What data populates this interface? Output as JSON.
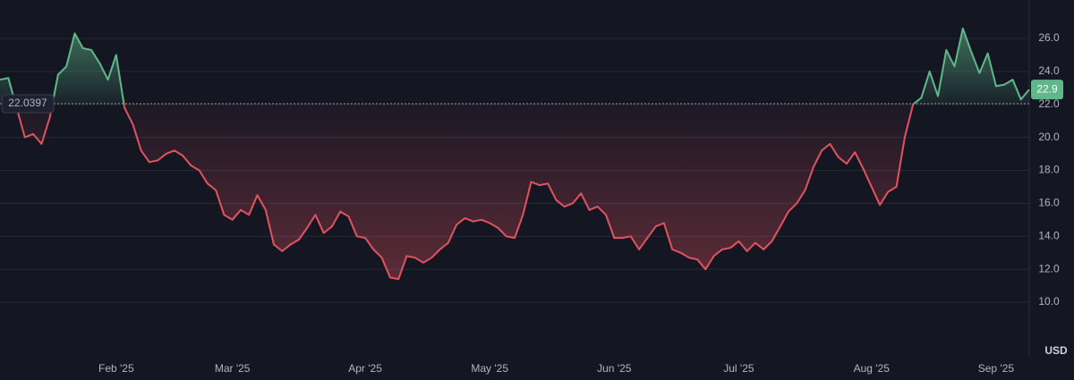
{
  "chart_data": {
    "type": "baseline",
    "categories": [
      null,
      null,
      null,
      null,
      null,
      null,
      null,
      null,
      null,
      null,
      null,
      null,
      null,
      null,
      "Feb '25",
      null,
      null,
      null,
      null,
      null,
      null,
      null,
      null,
      null,
      null,
      null,
      null,
      null,
      "Mar '25",
      null,
      null,
      null,
      null,
      null,
      null,
      null,
      null,
      null,
      null,
      null,
      null,
      null,
      null,
      null,
      "Apr '25",
      null,
      null,
      null,
      null,
      null,
      null,
      null,
      null,
      null,
      null,
      null,
      null,
      null,
      null,
      "May '25",
      null,
      null,
      null,
      null,
      null,
      null,
      null,
      null,
      null,
      null,
      null,
      null,
      null,
      null,
      "Jun '25",
      null,
      null,
      null,
      null,
      null,
      null,
      null,
      null,
      null,
      null,
      null,
      null,
      null,
      null,
      "Jul '25",
      null,
      null,
      null,
      null,
      null,
      null,
      null,
      null,
      null,
      null,
      null,
      null,
      null,
      null,
      null,
      "Aug '25",
      null,
      null,
      null,
      null,
      null,
      null,
      null,
      null,
      null,
      null,
      null,
      null,
      null,
      null,
      "Sep '25",
      null,
      null,
      null,
      null
    ],
    "values": [
      23.5,
      23.6,
      21.8,
      20.0,
      20.2,
      19.6,
      21.2,
      23.8,
      24.3,
      26.3,
      25.4,
      25.3,
      24.5,
      23.5,
      25.0,
      21.8,
      20.8,
      19.2,
      18.5,
      18.6,
      19.0,
      19.2,
      18.9,
      18.3,
      18.0,
      17.2,
      16.8,
      15.3,
      15.0,
      15.6,
      15.3,
      16.5,
      15.6,
      13.5,
      13.1,
      13.5,
      13.8,
      14.5,
      15.3,
      14.2,
      14.6,
      15.5,
      15.2,
      14.0,
      13.9,
      13.2,
      12.7,
      11.5,
      11.4,
      12.8,
      12.7,
      12.4,
      12.7,
      13.2,
      13.6,
      14.7,
      15.1,
      14.9,
      15.0,
      14.8,
      14.5,
      14.0,
      13.9,
      15.3,
      17.3,
      17.1,
      17.2,
      16.2,
      15.8,
      16.0,
      16.6,
      15.6,
      15.8,
      15.3,
      13.9,
      13.9,
      14.0,
      13.2,
      13.9,
      14.6,
      14.8,
      13.2,
      13.0,
      12.7,
      12.6,
      12.0,
      12.8,
      13.2,
      13.3,
      13.7,
      13.1,
      13.6,
      13.2,
      13.7,
      14.6,
      15.5,
      16.0,
      16.8,
      18.2,
      19.2,
      19.6,
      18.8,
      18.4,
      19.1,
      18.1,
      17.0,
      15.9,
      16.7,
      17.0,
      20.0,
      22.0,
      22.4,
      24.0,
      22.5,
      25.3,
      24.3,
      26.6,
      25.2,
      23.9,
      25.1,
      23.1,
      23.2,
      23.5,
      22.3,
      22.9
    ],
    "baseline": 22.0397,
    "last_price": 22.9,
    "currency": "USD",
    "up_color": "#5fb889",
    "down_color": "#e0535f",
    "ylim": [
      6.64,
      28.33
    ],
    "yticks": [
      {
        "value": 10,
        "label": "10.0"
      },
      {
        "value": 12,
        "label": "12.0"
      },
      {
        "value": 14,
        "label": "14.0"
      },
      {
        "value": 16,
        "label": "16.0"
      },
      {
        "value": 18,
        "label": "18.0"
      },
      {
        "value": 20,
        "label": "20.0"
      },
      {
        "value": 22,
        "label": "22.0"
      },
      {
        "value": 24,
        "label": "24.0"
      },
      {
        "value": 26,
        "label": "26.0"
      }
    ],
    "grid": true
  }
}
